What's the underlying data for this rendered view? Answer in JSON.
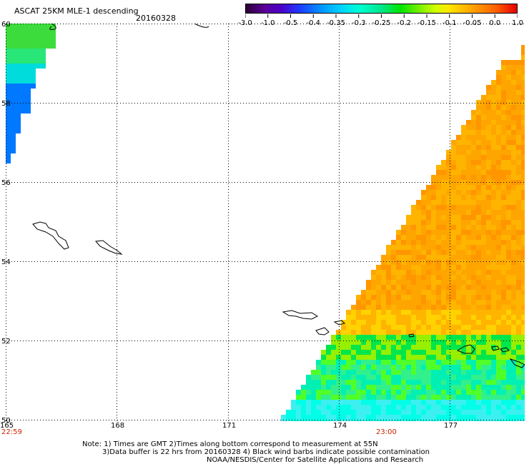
{
  "title": "ASCAT 25KM MLE-1 descending",
  "date": "20160328",
  "colorbar": {
    "labels": [
      "-3.0",
      "-1.0",
      "-0.5",
      "-0.4",
      "-0.35",
      "-0.3",
      "-0.25",
      "-0.2",
      "-0.15",
      "-0.1",
      "-0.05",
      "0.0",
      "1.0"
    ]
  },
  "map": {
    "lat_labels": [
      "60",
      "58",
      "56",
      "54",
      "52",
      "50"
    ],
    "lon_labels": [
      "165",
      "168",
      "171",
      "174",
      "177"
    ],
    "time_labels": [
      "22:59",
      "23:00"
    ]
  },
  "notes": {
    "line1": "Note: 1) Times are GMT 2)Times along bottom correspond to measurement at 55N",
    "line2": "3)Data buffer is 22 hrs from 20160328 4) Black wind barbs indicate possible contamination",
    "line3": "NOAA/NESDIS/Center for Satellite Applications and Research"
  }
}
